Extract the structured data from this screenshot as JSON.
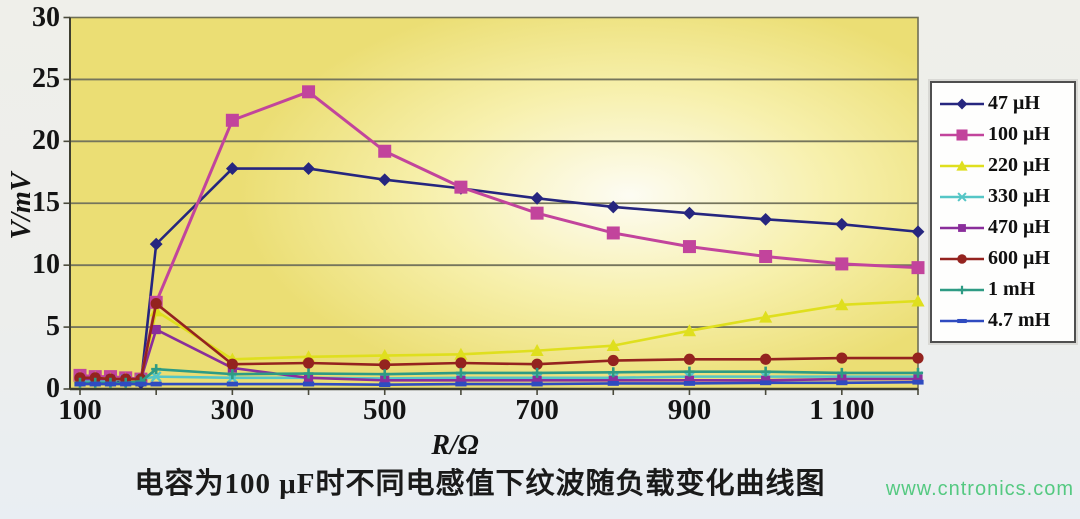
{
  "figure": {
    "caption": "电容为100 μF时不同电感值下纹波随负载变化曲线图",
    "watermark": "www.cntronics.com"
  },
  "chart_data": {
    "type": "line",
    "title": "",
    "xlabel": "R/Ω",
    "ylabel": "V/mV",
    "xlim": [
      100,
      1200
    ],
    "ylim": [
      0,
      30
    ],
    "grid": "horizontal-on",
    "legend_position": "right",
    "x_ticks": {
      "values": [
        100,
        300,
        500,
        700,
        900,
        1100
      ],
      "labels": [
        "100",
        "300",
        "500",
        "700",
        "900",
        "1 100"
      ]
    },
    "y_ticks": [
      0,
      5,
      10,
      15,
      20,
      25,
      30
    ],
    "x": [
      100,
      120,
      140,
      160,
      180,
      200,
      300,
      400,
      500,
      600,
      700,
      800,
      900,
      1000,
      1100,
      1200
    ],
    "series": [
      {
        "name": "47 μH",
        "color": "#26267F",
        "marker": "diamond",
        "values": [
          0.8,
          0.8,
          0.7,
          0.6,
          0.5,
          11.7,
          17.8,
          17.8,
          16.9,
          16.2,
          15.4,
          14.7,
          14.2,
          13.7,
          13.3,
          12.7
        ]
      },
      {
        "name": "100 μH",
        "color": "#C2449C",
        "marker": "square",
        "values": [
          1.1,
          1.0,
          1.0,
          0.9,
          0.8,
          7.0,
          21.7,
          24.0,
          19.2,
          16.3,
          14.2,
          12.6,
          11.5,
          10.7,
          10.1,
          9.8
        ]
      },
      {
        "name": "220 μH",
        "color": "#DFDF1E",
        "marker": "triangle",
        "values": [
          0.9,
          0.9,
          0.8,
          0.8,
          0.7,
          6.3,
          2.4,
          2.6,
          2.7,
          2.8,
          3.1,
          3.5,
          4.7,
          5.8,
          6.8,
          7.1
        ]
      },
      {
        "name": "330 μH",
        "color": "#55C6C6",
        "marker": "x",
        "values": [
          0.7,
          0.7,
          0.7,
          0.8,
          0.8,
          1.0,
          0.9,
          0.9,
          0.85,
          0.9,
          0.9,
          0.9,
          1.0,
          1.0,
          1.0,
          1.0
        ]
      },
      {
        "name": "470 μH",
        "color": "#8A2E9B",
        "marker": "square-small",
        "values": [
          0.8,
          0.8,
          0.8,
          0.8,
          0.8,
          4.8,
          1.7,
          0.9,
          0.7,
          0.7,
          0.7,
          0.7,
          0.7,
          0.7,
          0.8,
          0.8
        ]
      },
      {
        "name": "600 μH",
        "color": "#94231F",
        "marker": "circle",
        "values": [
          0.9,
          0.9,
          0.8,
          0.8,
          0.8,
          6.9,
          2.0,
          2.1,
          1.95,
          2.1,
          2.0,
          2.3,
          2.4,
          2.4,
          2.5,
          2.5
        ]
      },
      {
        "name": "1 mH",
        "color": "#2E9B84",
        "marker": "plus",
        "values": [
          0.5,
          0.5,
          0.5,
          0.5,
          0.6,
          1.6,
          1.2,
          1.25,
          1.2,
          1.3,
          1.3,
          1.35,
          1.4,
          1.4,
          1.3,
          1.3
        ]
      },
      {
        "name": "4.7 mH",
        "color": "#2F4BC0",
        "marker": "dash",
        "values": [
          0.4,
          0.4,
          0.4,
          0.4,
          0.4,
          0.4,
          0.4,
          0.4,
          0.35,
          0.4,
          0.4,
          0.45,
          0.45,
          0.5,
          0.5,
          0.55
        ]
      }
    ]
  },
  "colors": {
    "plot_bg_yellow": "#EBDE74",
    "plot_bg_highlight": "#FDFCF3",
    "gridline": "#75755C",
    "axis": "#3E3E30",
    "text": "#141414",
    "watermark_green": "#55C981",
    "legend_bg": "#FEFEFD"
  }
}
